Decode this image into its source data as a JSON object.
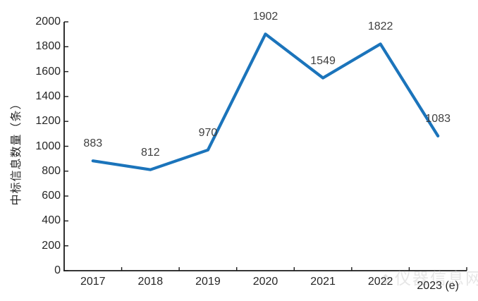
{
  "chart_data": {
    "type": "line",
    "title": "",
    "categories": [
      "2017",
      "2018",
      "2019",
      "2020",
      "2021",
      "2022",
      "2023 (e)"
    ],
    "values": [
      883,
      812,
      970,
      1902,
      1549,
      1822,
      1083
    ],
    "data_labels": [
      "883",
      "812",
      "970",
      "1902",
      "1549",
      "1822",
      "1083"
    ],
    "xlabel": "",
    "ylabel": "中标信息数量（条）",
    "ylim": [
      0,
      2000
    ],
    "ytick_step": 200,
    "yticks": [
      0,
      200,
      400,
      600,
      800,
      1000,
      1200,
      1400,
      1600,
      1800,
      2000
    ],
    "grid": false,
    "legend_position": "none",
    "line_color": "#1b74bb",
    "axis_color": "#1a1a1a",
    "tick_label_color": "#262626",
    "data_label_color": "#3f3f3f"
  },
  "watermark": {
    "text": "仪器信息网",
    "icon": "diamond-logo",
    "color": "#c9c9c9"
  }
}
